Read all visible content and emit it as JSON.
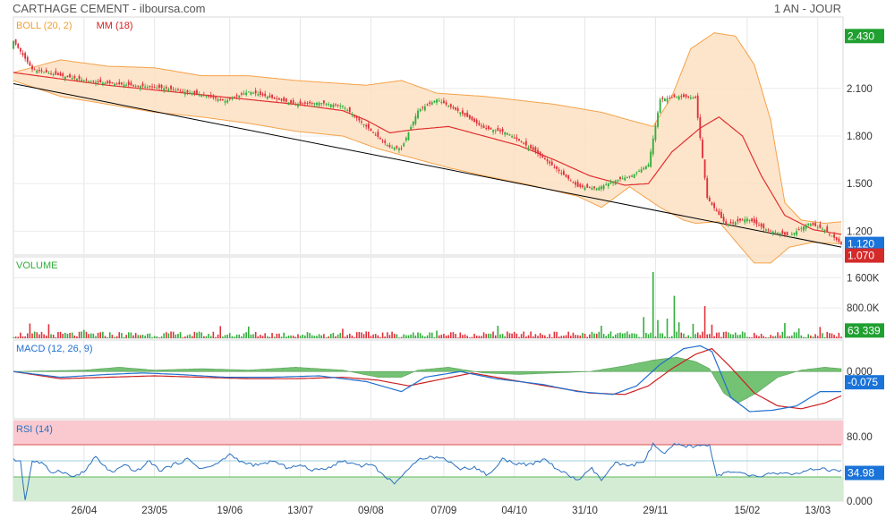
{
  "header": {
    "title": "CARTHAGE CEMENT - ilboursa.com",
    "period": "1 AN - JOUR"
  },
  "colors": {
    "up": "#2fae3a",
    "down": "#e0303a",
    "ma": "#e03030",
    "band_fill": "#fde0c2",
    "band_line": "#f5a24a",
    "trend": "#000000",
    "macd": "#1f6fd0",
    "signal": "#cc1f1f",
    "hist": "#5cb85c",
    "rsi": "#2a6fc0",
    "rsi_over": "#f9c9cf",
    "rsi_under": "#d3ecd3",
    "badge_green": "#1fa030",
    "badge_blue": "#1a73d9",
    "badge_red": "#d42a2a"
  },
  "chart_data": [
    {
      "panel": "price",
      "type": "candlestick",
      "legend": [
        {
          "label": "BOLL (20, 2)",
          "color": "#f0a030"
        },
        {
          "label": "MM (18)",
          "color": "#d62020"
        }
      ],
      "yticks": [
        "2.100",
        "1.800",
        "1.500",
        "1.200"
      ],
      "ytick_values": [
        2.1,
        1.8,
        1.5,
        1.2
      ],
      "ylim": [
        1.05,
        2.55
      ],
      "badges": [
        {
          "label": "2.430",
          "value": 2.43,
          "color": "#1fa030"
        },
        {
          "label": "1.120",
          "value": 1.12,
          "color": "#1a73d9"
        },
        {
          "label": "1.070",
          "value": 1.07,
          "color": "#d42a2a"
        }
      ],
      "bb_upper_knots": [
        [
          0,
          2.2
        ],
        [
          20,
          2.28
        ],
        [
          40,
          2.24
        ],
        [
          60,
          2.23
        ],
        [
          80,
          2.18
        ],
        [
          100,
          2.18
        ],
        [
          120,
          2.15
        ],
        [
          150,
          2.12
        ],
        [
          165,
          2.15
        ],
        [
          180,
          2.07
        ],
        [
          200,
          2.05
        ],
        [
          230,
          2.0
        ],
        [
          250,
          1.95
        ],
        [
          262,
          1.9
        ],
        [
          272,
          1.86
        ],
        [
          280,
          2.05
        ],
        [
          288,
          2.35
        ],
        [
          298,
          2.45
        ],
        [
          307,
          2.43
        ],
        [
          315,
          2.25
        ],
        [
          322,
          1.9
        ],
        [
          328,
          1.38
        ],
        [
          335,
          1.27
        ],
        [
          345,
          1.25
        ],
        [
          352,
          1.26
        ]
      ],
      "bb_lower_knots": [
        [
          0,
          2.15
        ],
        [
          20,
          2.05
        ],
        [
          40,
          2.0
        ],
        [
          60,
          1.95
        ],
        [
          80,
          1.92
        ],
        [
          100,
          1.88
        ],
        [
          120,
          1.83
        ],
        [
          140,
          1.8
        ],
        [
          155,
          1.72
        ],
        [
          165,
          1.68
        ],
        [
          185,
          1.6
        ],
        [
          200,
          1.55
        ],
        [
          220,
          1.49
        ],
        [
          240,
          1.42
        ],
        [
          250,
          1.35
        ],
        [
          262,
          1.48
        ],
        [
          275,
          1.35
        ],
        [
          285,
          1.27
        ],
        [
          290,
          1.25
        ],
        [
          300,
          1.26
        ],
        [
          308,
          1.12
        ],
        [
          315,
          1.0
        ],
        [
          322,
          1.0
        ],
        [
          330,
          1.1
        ],
        [
          340,
          1.13
        ],
        [
          352,
          1.12
        ]
      ],
      "ma_knots": [
        [
          0,
          2.2
        ],
        [
          20,
          2.16
        ],
        [
          40,
          2.12
        ],
        [
          60,
          2.09
        ],
        [
          80,
          2.06
        ],
        [
          100,
          2.03
        ],
        [
          120,
          2.0
        ],
        [
          140,
          1.96
        ],
        [
          150,
          1.9
        ],
        [
          160,
          1.82
        ],
        [
          170,
          1.84
        ],
        [
          185,
          1.86
        ],
        [
          200,
          1.8
        ],
        [
          215,
          1.74
        ],
        [
          230,
          1.65
        ],
        [
          245,
          1.55
        ],
        [
          260,
          1.49
        ],
        [
          270,
          1.5
        ],
        [
          280,
          1.7
        ],
        [
          292,
          1.85
        ],
        [
          300,
          1.92
        ],
        [
          310,
          1.8
        ],
        [
          318,
          1.55
        ],
        [
          328,
          1.3
        ],
        [
          340,
          1.21
        ],
        [
          352,
          1.18
        ]
      ],
      "close_knots": [
        [
          0,
          2.4
        ],
        [
          8,
          2.22
        ],
        [
          20,
          2.18
        ],
        [
          35,
          2.14
        ],
        [
          50,
          2.12
        ],
        [
          65,
          2.1
        ],
        [
          80,
          2.06
        ],
        [
          90,
          2.02
        ],
        [
          100,
          2.08
        ],
        [
          110,
          2.04
        ],
        [
          120,
          2.0
        ],
        [
          130,
          2.01
        ],
        [
          140,
          1.99
        ],
        [
          150,
          1.86
        ],
        [
          160,
          1.73
        ],
        [
          165,
          1.72
        ],
        [
          172,
          1.96
        ],
        [
          180,
          2.03
        ],
        [
          190,
          1.95
        ],
        [
          200,
          1.85
        ],
        [
          210,
          1.82
        ],
        [
          222,
          1.7
        ],
        [
          232,
          1.58
        ],
        [
          240,
          1.48
        ],
        [
          248,
          1.47
        ],
        [
          256,
          1.52
        ],
        [
          263,
          1.55
        ],
        [
          270,
          1.62
        ],
        [
          275,
          2.03
        ],
        [
          283,
          2.05
        ],
        [
          290,
          2.04
        ],
        [
          295,
          1.41
        ],
        [
          303,
          1.24
        ],
        [
          312,
          1.28
        ],
        [
          320,
          1.21
        ],
        [
          330,
          1.17
        ],
        [
          338,
          1.25
        ],
        [
          345,
          1.21
        ],
        [
          352,
          1.12
        ]
      ],
      "trendline": [
        [
          0,
          2.13
        ],
        [
          352,
          1.1
        ]
      ]
    },
    {
      "panel": "volume",
      "type": "bar",
      "legend": [
        {
          "label": "VOLUME",
          "color": "#2fae3a"
        }
      ],
      "yticks": [
        "1 600K",
        "800.0K"
      ],
      "ytick_values": [
        1600000,
        800000
      ],
      "ylim": [
        0,
        2150000
      ],
      "badge": {
        "label": "63 339",
        "value": 63339,
        "color": "#1fa030"
      },
      "spikes": [
        {
          "x": 7,
          "value": 390000
        },
        {
          "x": 15,
          "value": 370000
        },
        {
          "x": 30,
          "value": 220000
        },
        {
          "x": 88,
          "value": 320000
        },
        {
          "x": 100,
          "value": 310000
        },
        {
          "x": 140,
          "value": 250000
        },
        {
          "x": 180,
          "value": 200000
        },
        {
          "x": 206,
          "value": 330000
        },
        {
          "x": 250,
          "value": 330000
        },
        {
          "x": 268,
          "value": 560000
        },
        {
          "x": 272,
          "value": 1750000
        },
        {
          "x": 274,
          "value": 480000
        },
        {
          "x": 278,
          "value": 520000
        },
        {
          "x": 281,
          "value": 1120000
        },
        {
          "x": 283,
          "value": 420000
        },
        {
          "x": 289,
          "value": 380000
        },
        {
          "x": 294,
          "value": 850000
        },
        {
          "x": 297,
          "value": 360000
        },
        {
          "x": 328,
          "value": 400000
        },
        {
          "x": 334,
          "value": 260000
        },
        {
          "x": 343,
          "value": 300000
        }
      ]
    },
    {
      "panel": "macd",
      "type": "line",
      "legend": [
        {
          "label": "MACD (12, 26, 9)",
          "color": "#1f6fd0"
        }
      ],
      "yticks": [
        "0.000"
      ],
      "ytick_values": [
        0
      ],
      "ylim": [
        -0.33,
        0.22
      ],
      "badge": {
        "label": "-0.075",
        "value": -0.075,
        "color": "#1a73d9"
      },
      "macd_knots": [
        [
          0,
          0.0
        ],
        [
          20,
          -0.04
        ],
        [
          40,
          -0.02
        ],
        [
          55,
          -0.01
        ],
        [
          70,
          -0.02
        ],
        [
          90,
          -0.04
        ],
        [
          110,
          -0.04
        ],
        [
          130,
          -0.03
        ],
        [
          150,
          -0.07
        ],
        [
          165,
          -0.14
        ],
        [
          175,
          -0.04
        ],
        [
          190,
          0.0
        ],
        [
          205,
          -0.05
        ],
        [
          225,
          -0.09
        ],
        [
          240,
          -0.14
        ],
        [
          255,
          -0.16
        ],
        [
          265,
          -0.1
        ],
        [
          275,
          0.05
        ],
        [
          285,
          0.16
        ],
        [
          292,
          0.18
        ],
        [
          297,
          0.14
        ],
        [
          305,
          -0.18
        ],
        [
          313,
          -0.28
        ],
        [
          323,
          -0.27
        ],
        [
          333,
          -0.24
        ],
        [
          343,
          -0.14
        ],
        [
          352,
          -0.14
        ]
      ],
      "signal_knots": [
        [
          0,
          0.0
        ],
        [
          20,
          -0.05
        ],
        [
          40,
          -0.04
        ],
        [
          60,
          -0.03
        ],
        [
          80,
          -0.04
        ],
        [
          100,
          -0.05
        ],
        [
          120,
          -0.05
        ],
        [
          140,
          -0.04
        ],
        [
          155,
          -0.06
        ],
        [
          168,
          -0.1
        ],
        [
          180,
          -0.06
        ],
        [
          195,
          -0.01
        ],
        [
          212,
          -0.06
        ],
        [
          230,
          -0.11
        ],
        [
          245,
          -0.15
        ],
        [
          260,
          -0.16
        ],
        [
          270,
          -0.1
        ],
        [
          280,
          0.02
        ],
        [
          290,
          0.12
        ],
        [
          297,
          0.16
        ],
        [
          305,
          0.03
        ],
        [
          315,
          -0.15
        ],
        [
          325,
          -0.24
        ],
        [
          335,
          -0.26
        ],
        [
          345,
          -0.22
        ],
        [
          352,
          -0.17
        ]
      ],
      "hist_knots": [
        [
          0,
          0.0
        ],
        [
          30,
          0.01
        ],
        [
          45,
          0.03
        ],
        [
          60,
          0.01
        ],
        [
          80,
          0.02
        ],
        [
          100,
          0.01
        ],
        [
          120,
          0.03
        ],
        [
          140,
          0.01
        ],
        [
          155,
          -0.04
        ],
        [
          165,
          -0.04
        ],
        [
          172,
          0.01
        ],
        [
          185,
          0.03
        ],
        [
          200,
          -0.01
        ],
        [
          215,
          -0.02
        ],
        [
          230,
          -0.01
        ],
        [
          245,
          0.0
        ],
        [
          260,
          0.04
        ],
        [
          272,
          0.08
        ],
        [
          282,
          0.1
        ],
        [
          290,
          0.07
        ],
        [
          296,
          0.02
        ],
        [
          302,
          -0.15
        ],
        [
          308,
          -0.22
        ],
        [
          316,
          -0.15
        ],
        [
          325,
          -0.04
        ],
        [
          335,
          0.01
        ],
        [
          345,
          0.03
        ],
        [
          352,
          0.02
        ]
      ]
    },
    {
      "panel": "rsi",
      "type": "line",
      "legend": [
        {
          "label": "RSI (14)",
          "color": "#2a6fc0"
        }
      ],
      "yticks": [
        "80.00",
        "0.000"
      ],
      "ytick_values": [
        80,
        0
      ],
      "ylim": [
        0,
        100
      ],
      "overbought": 70,
      "oversold": 30,
      "badge": {
        "label": "34.98",
        "value": 34.98,
        "color": "#1a73d9"
      },
      "rsi_knots": [
        [
          0,
          51
        ],
        [
          3,
          50
        ],
        [
          5,
          1
        ],
        [
          8,
          50
        ],
        [
          12,
          47
        ],
        [
          16,
          36
        ],
        [
          20,
          38
        ],
        [
          25,
          30
        ],
        [
          30,
          36
        ],
        [
          35,
          55
        ],
        [
          38,
          45
        ],
        [
          42,
          35
        ],
        [
          48,
          45
        ],
        [
          52,
          36
        ],
        [
          58,
          50
        ],
        [
          62,
          38
        ],
        [
          68,
          45
        ],
        [
          74,
          52
        ],
        [
          80,
          40
        ],
        [
          86,
          45
        ],
        [
          92,
          58
        ],
        [
          98,
          47
        ],
        [
          104,
          44
        ],
        [
          110,
          50
        ],
        [
          116,
          42
        ],
        [
          122,
          44
        ],
        [
          128,
          38
        ],
        [
          134,
          42
        ],
        [
          140,
          50
        ],
        [
          148,
          44
        ],
        [
          152,
          47
        ],
        [
          158,
          30
        ],
        [
          162,
          23
        ],
        [
          168,
          38
        ],
        [
          172,
          53
        ],
        [
          178,
          55
        ],
        [
          184,
          52
        ],
        [
          190,
          40
        ],
        [
          196,
          42
        ],
        [
          202,
          32
        ],
        [
          208,
          52
        ],
        [
          214,
          47
        ],
        [
          220,
          45
        ],
        [
          226,
          52
        ],
        [
          232,
          38
        ],
        [
          240,
          26
        ],
        [
          246,
          40
        ],
        [
          250,
          26
        ],
        [
          256,
          47
        ],
        [
          262,
          43
        ],
        [
          268,
          50
        ],
        [
          272,
          70
        ],
        [
          277,
          58
        ],
        [
          281,
          70
        ],
        [
          287,
          68
        ],
        [
          291,
          68
        ],
        [
          296,
          70
        ],
        [
          299,
          32
        ],
        [
          305,
          36
        ],
        [
          310,
          34
        ],
        [
          316,
          30
        ],
        [
          322,
          34
        ],
        [
          328,
          35
        ],
        [
          334,
          33
        ],
        [
          340,
          40
        ],
        [
          346,
          39
        ],
        [
          352,
          37
        ]
      ]
    }
  ],
  "x_axis": {
    "labels": [
      "26/04",
      "23/05",
      "19/06",
      "13/07",
      "09/08",
      "07/09",
      "04/10",
      "31/10",
      "29/11",
      "15/02",
      "13/03"
    ],
    "label_positions": [
      30,
      60,
      92,
      122,
      152,
      183,
      213,
      243,
      273,
      312,
      342
    ],
    "bars_total": 353
  }
}
